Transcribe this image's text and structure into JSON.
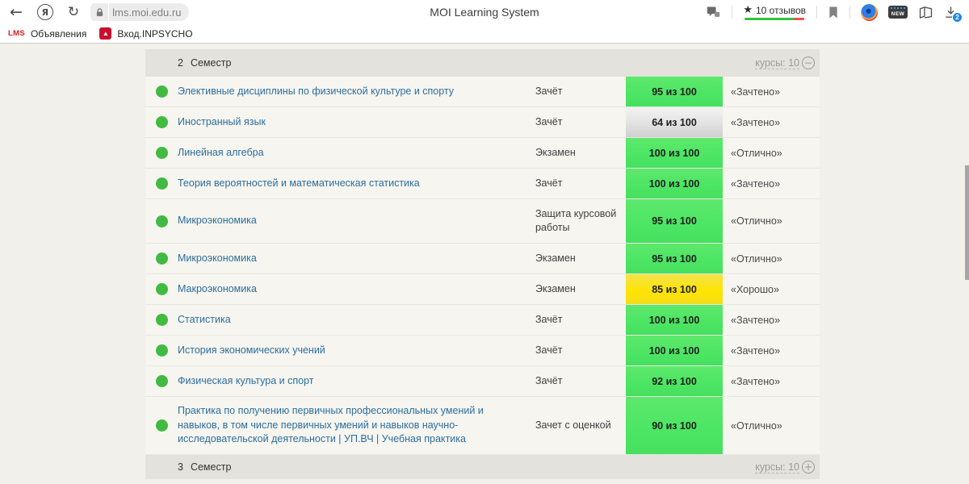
{
  "browser": {
    "page_title": "MOI Learning System",
    "url": "lms.moi.edu.ru",
    "reviews_label": "10 отзывов",
    "downloads_count": "2",
    "new_label": "NEW",
    "lms_logo_text": "LMS",
    "bookmarks": [
      {
        "label": "Объявления"
      },
      {
        "label": "Вход.INPSYCHO"
      }
    ],
    "icons": {
      "back": "←",
      "yandex": "Я",
      "refresh": "↻",
      "star": "★",
      "inpsycho_glyph": "▲"
    }
  },
  "gradebook": {
    "top_header": {
      "number": "2",
      "title": "Семестр",
      "courses_label": "курсы: 10",
      "toggle": "−",
      "state": "collapse"
    },
    "bottom_header": {
      "number": "3",
      "title": "Семестр",
      "courses_label": "курсы: 10",
      "toggle": "+",
      "state": "expand"
    },
    "rows": [
      {
        "name": "Элективные дисциплины по физической культуре и спорту",
        "type": "Зачёт",
        "score": "95 из 100",
        "color": "green",
        "grade": "«Зачтено»"
      },
      {
        "name": "Иностранный язык",
        "type": "Зачёт",
        "score": "64 из 100",
        "color": "silver",
        "grade": "«Зачтено»"
      },
      {
        "name": "Линейная алгебра",
        "type": "Экзамен",
        "score": "100 из 100",
        "color": "green",
        "grade": "«Отлично»"
      },
      {
        "name": "Теория вероятностей и математическая статистика",
        "type": "Зачёт",
        "score": "100 из 100",
        "color": "green",
        "grade": "«Зачтено»"
      },
      {
        "name": "Микроэкономика",
        "type": "Защита курсовой работы",
        "score": "95 из 100",
        "color": "green",
        "grade": "«Отлично»"
      },
      {
        "name": "Микроэкономика",
        "type": "Экзамен",
        "score": "95 из 100",
        "color": "green",
        "grade": "«Отлично»"
      },
      {
        "name": "Макроэкономика",
        "type": "Экзамен",
        "score": "85 из 100",
        "color": "yellow",
        "grade": "«Хорошо»"
      },
      {
        "name": "Статистика",
        "type": "Зачёт",
        "score": "100 из 100",
        "color": "green",
        "grade": "«Зачтено»"
      },
      {
        "name": "История экономических учений",
        "type": "Зачёт",
        "score": "100 из 100",
        "color": "green",
        "grade": "«Зачтено»"
      },
      {
        "name": "Физическая культура и спорт",
        "type": "Зачёт",
        "score": "92 из 100",
        "color": "green",
        "grade": "«Зачтено»"
      },
      {
        "name": "Практика по получению первичных профессиональных умений и навыков, в том числе первичных умений и навыков научно-исследовательской деятельности | УП.ВЧ | Учебная практика",
        "type": "Зачет с оценкой",
        "score": "90 из 100",
        "color": "green",
        "grade": "«Отлично»"
      }
    ],
    "colors": {
      "badge_green": "#3ecb51",
      "badge_yellow": "#ffdd00",
      "badge_silver": "#d9d9d9",
      "status_dot_green": "#41ba41",
      "course_link_blue": "#2c6e9c",
      "reviews_bar_green": "#35c23f",
      "reviews_bar_red": "#e4574b",
      "downloads_badge_blue": "#1f87e5"
    }
  }
}
